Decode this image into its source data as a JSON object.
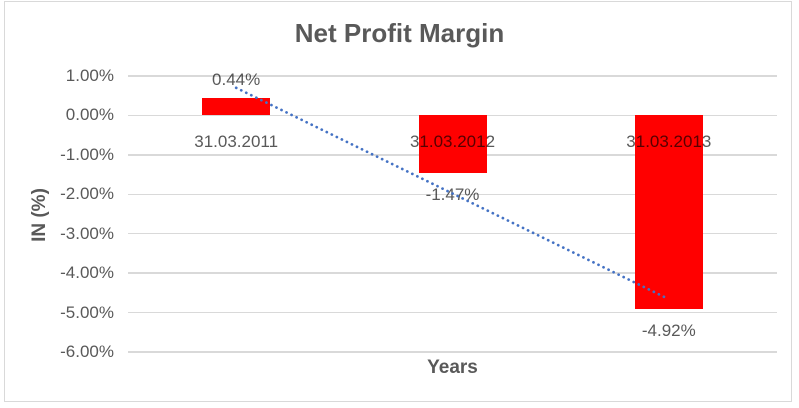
{
  "chart_data": {
    "type": "bar",
    "title": "Net Profit Margin",
    "xlabel": "Years",
    "ylabel": "IN (%)",
    "categories": [
      "31.03.2011",
      "31.03.2012",
      "31.03.2013"
    ],
    "values": [
      0.44,
      -1.47,
      -4.92
    ],
    "data_labels": [
      "0.44%",
      "-1.47%",
      "-4.92%"
    ],
    "ylim": [
      -6,
      1
    ],
    "yticks": [
      {
        "label": "1.00%",
        "value": 1
      },
      {
        "label": "0.00%",
        "value": 0
      },
      {
        "label": "-1.00%",
        "value": -1
      },
      {
        "label": "-2.00%",
        "value": -2
      },
      {
        "label": "-3.00%",
        "value": -3
      },
      {
        "label": "-4.00%",
        "value": -4
      },
      {
        "label": "-5.00%",
        "value": -5
      },
      {
        "label": "-6.00%",
        "value": -6
      }
    ],
    "grid": true,
    "legend": "none",
    "colors": {
      "bar": "#ff0000",
      "text": "#595959",
      "gridline": "#d9d9d9",
      "trendline": "#4472c4",
      "border": "#d9d9d9"
    },
    "trendline": {
      "type": "linear",
      "style": "dotted",
      "start_value": 0.7,
      "end_value": -4.66
    }
  }
}
